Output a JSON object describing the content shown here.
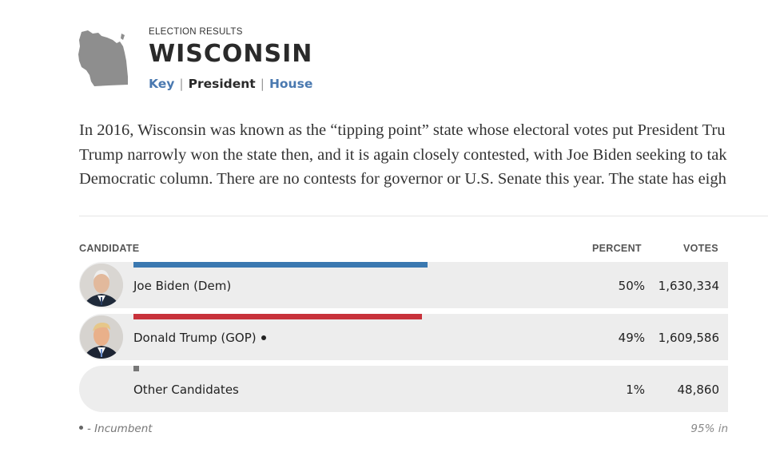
{
  "header": {
    "kicker": "ELECTION RESULTS",
    "state": "WISCONSIN",
    "nav": [
      {
        "label": "Key",
        "active": false
      },
      {
        "label": "President",
        "active": true
      },
      {
        "label": "House",
        "active": false
      }
    ],
    "nav_separator": "|"
  },
  "intro": {
    "lines": [
      "In 2016, Wisconsin was known as the “tipping point” state whose electoral votes put President Tru",
      "Trump narrowly won the state then, and it is again closely contested, with Joe Biden seeking to tak",
      "Democratic column. There are no contests for governor or U.S. Senate this year. The state has eigh"
    ]
  },
  "table": {
    "headers": {
      "candidate": "CANDIDATE",
      "percent": "PERCENT",
      "votes": "VOTES"
    },
    "rows": [
      {
        "name": "Joe Biden (Dem)",
        "percent": "50%",
        "votes": "1,630,334",
        "bar_pct": 50,
        "color": "#3a78b0",
        "incumbent": false,
        "avatar": "biden-portrait"
      },
      {
        "name": "Donald Trump (GOP)",
        "percent": "49%",
        "votes": "1,609,586",
        "bar_pct": 49,
        "color": "#c8323b",
        "incumbent": true,
        "avatar": "trump-portrait"
      },
      {
        "name": "Other Candidates",
        "percent": "1%",
        "votes": "48,860",
        "bar_pct": 1,
        "color": "#777777",
        "incumbent": false,
        "avatar": null
      }
    ]
  },
  "footer": {
    "incumbent_legend": "- Incumbent",
    "reporting": "95% in"
  },
  "colors": {
    "link": "#4a79b0",
    "row_bg": "#ededed",
    "state_shape": "#8e8e8e"
  }
}
